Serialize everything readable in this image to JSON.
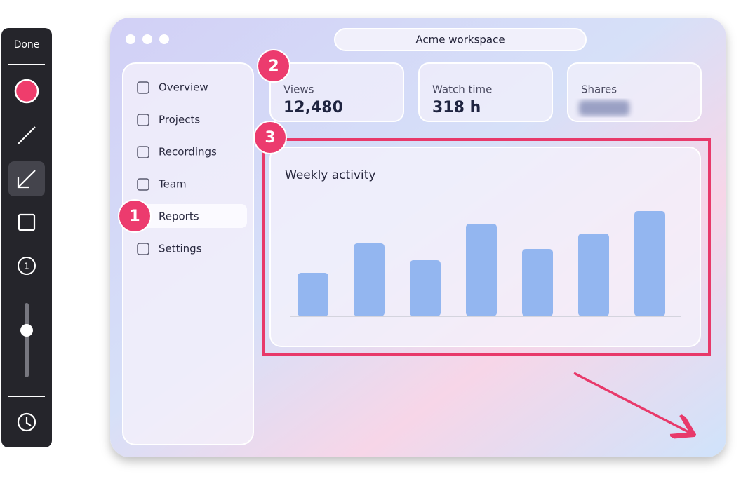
{
  "toolbar": {
    "done": "Done",
    "counter_icon": "1"
  },
  "window": {
    "title": "Acme workspace"
  },
  "sidebar": {
    "items": [
      "Overview",
      "Projects",
      "Recordings",
      "Team",
      "Reports",
      "Settings"
    ]
  },
  "cards": [
    {
      "label": "Views",
      "value": "12,480"
    },
    {
      "label": "Watch time",
      "value": "318 h"
    },
    {
      "label": "Shares"
    }
  ],
  "chart": {
    "type": "bar",
    "title": "Weekly activity",
    "values": [
      62,
      104,
      80,
      132,
      96,
      118,
      150
    ],
    "color": "#93b6f0"
  },
  "annotations": {
    "markers": [
      "1",
      "2",
      "3"
    ]
  }
}
